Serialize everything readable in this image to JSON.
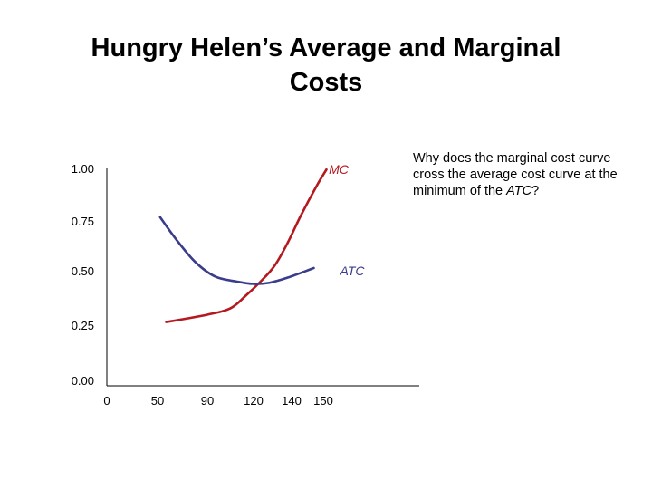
{
  "title": {
    "line1": "Hungry Helen’s Average and Marginal",
    "line2": "Costs"
  },
  "question": {
    "lead": "Why does the marginal cost curve cross  the average cost curve at the minimum of the ",
    "term": "ATC",
    "tail": "?"
  },
  "colors": {
    "mc": "#b3191e",
    "atc": "#3a3c8c",
    "axis": "#000000"
  },
  "chart_data": {
    "type": "line",
    "title": "Hungry Helen’s Average and Marginal Costs",
    "xlabel": "",
    "ylabel": "",
    "x_ticks": [
      "0",
      "50",
      "90",
      "120",
      "140",
      "150"
    ],
    "y_ticks": [
      "0.00",
      "0.25",
      "0.50",
      "0.75",
      "1.00"
    ],
    "ylim": [
      0,
      1.0
    ],
    "grid": false,
    "legend": "none",
    "series": [
      {
        "name": "MC",
        "color": "#b3191e",
        "points": [
          {
            "x": 57,
            "y": 0.275
          },
          {
            "x": 90,
            "y": 0.31
          },
          {
            "x": 105,
            "y": 0.34
          },
          {
            "x": 115,
            "y": 0.4
          },
          {
            "x": 123,
            "y": 0.46
          },
          {
            "x": 131,
            "y": 0.54
          },
          {
            "x": 138,
            "y": 0.65
          },
          {
            "x": 143,
            "y": 0.78
          },
          {
            "x": 148,
            "y": 0.92
          },
          {
            "x": 151,
            "y": 0.995
          }
        ]
      },
      {
        "name": "ATC",
        "color": "#3a3c8c",
        "points": [
          {
            "x": 52,
            "y": 0.77
          },
          {
            "x": 65,
            "y": 0.665
          },
          {
            "x": 80,
            "y": 0.56
          },
          {
            "x": 95,
            "y": 0.49
          },
          {
            "x": 110,
            "y": 0.465
          },
          {
            "x": 120,
            "y": 0.455
          },
          {
            "x": 128,
            "y": 0.46
          },
          {
            "x": 138,
            "y": 0.485
          },
          {
            "x": 147,
            "y": 0.53
          }
        ]
      }
    ]
  }
}
